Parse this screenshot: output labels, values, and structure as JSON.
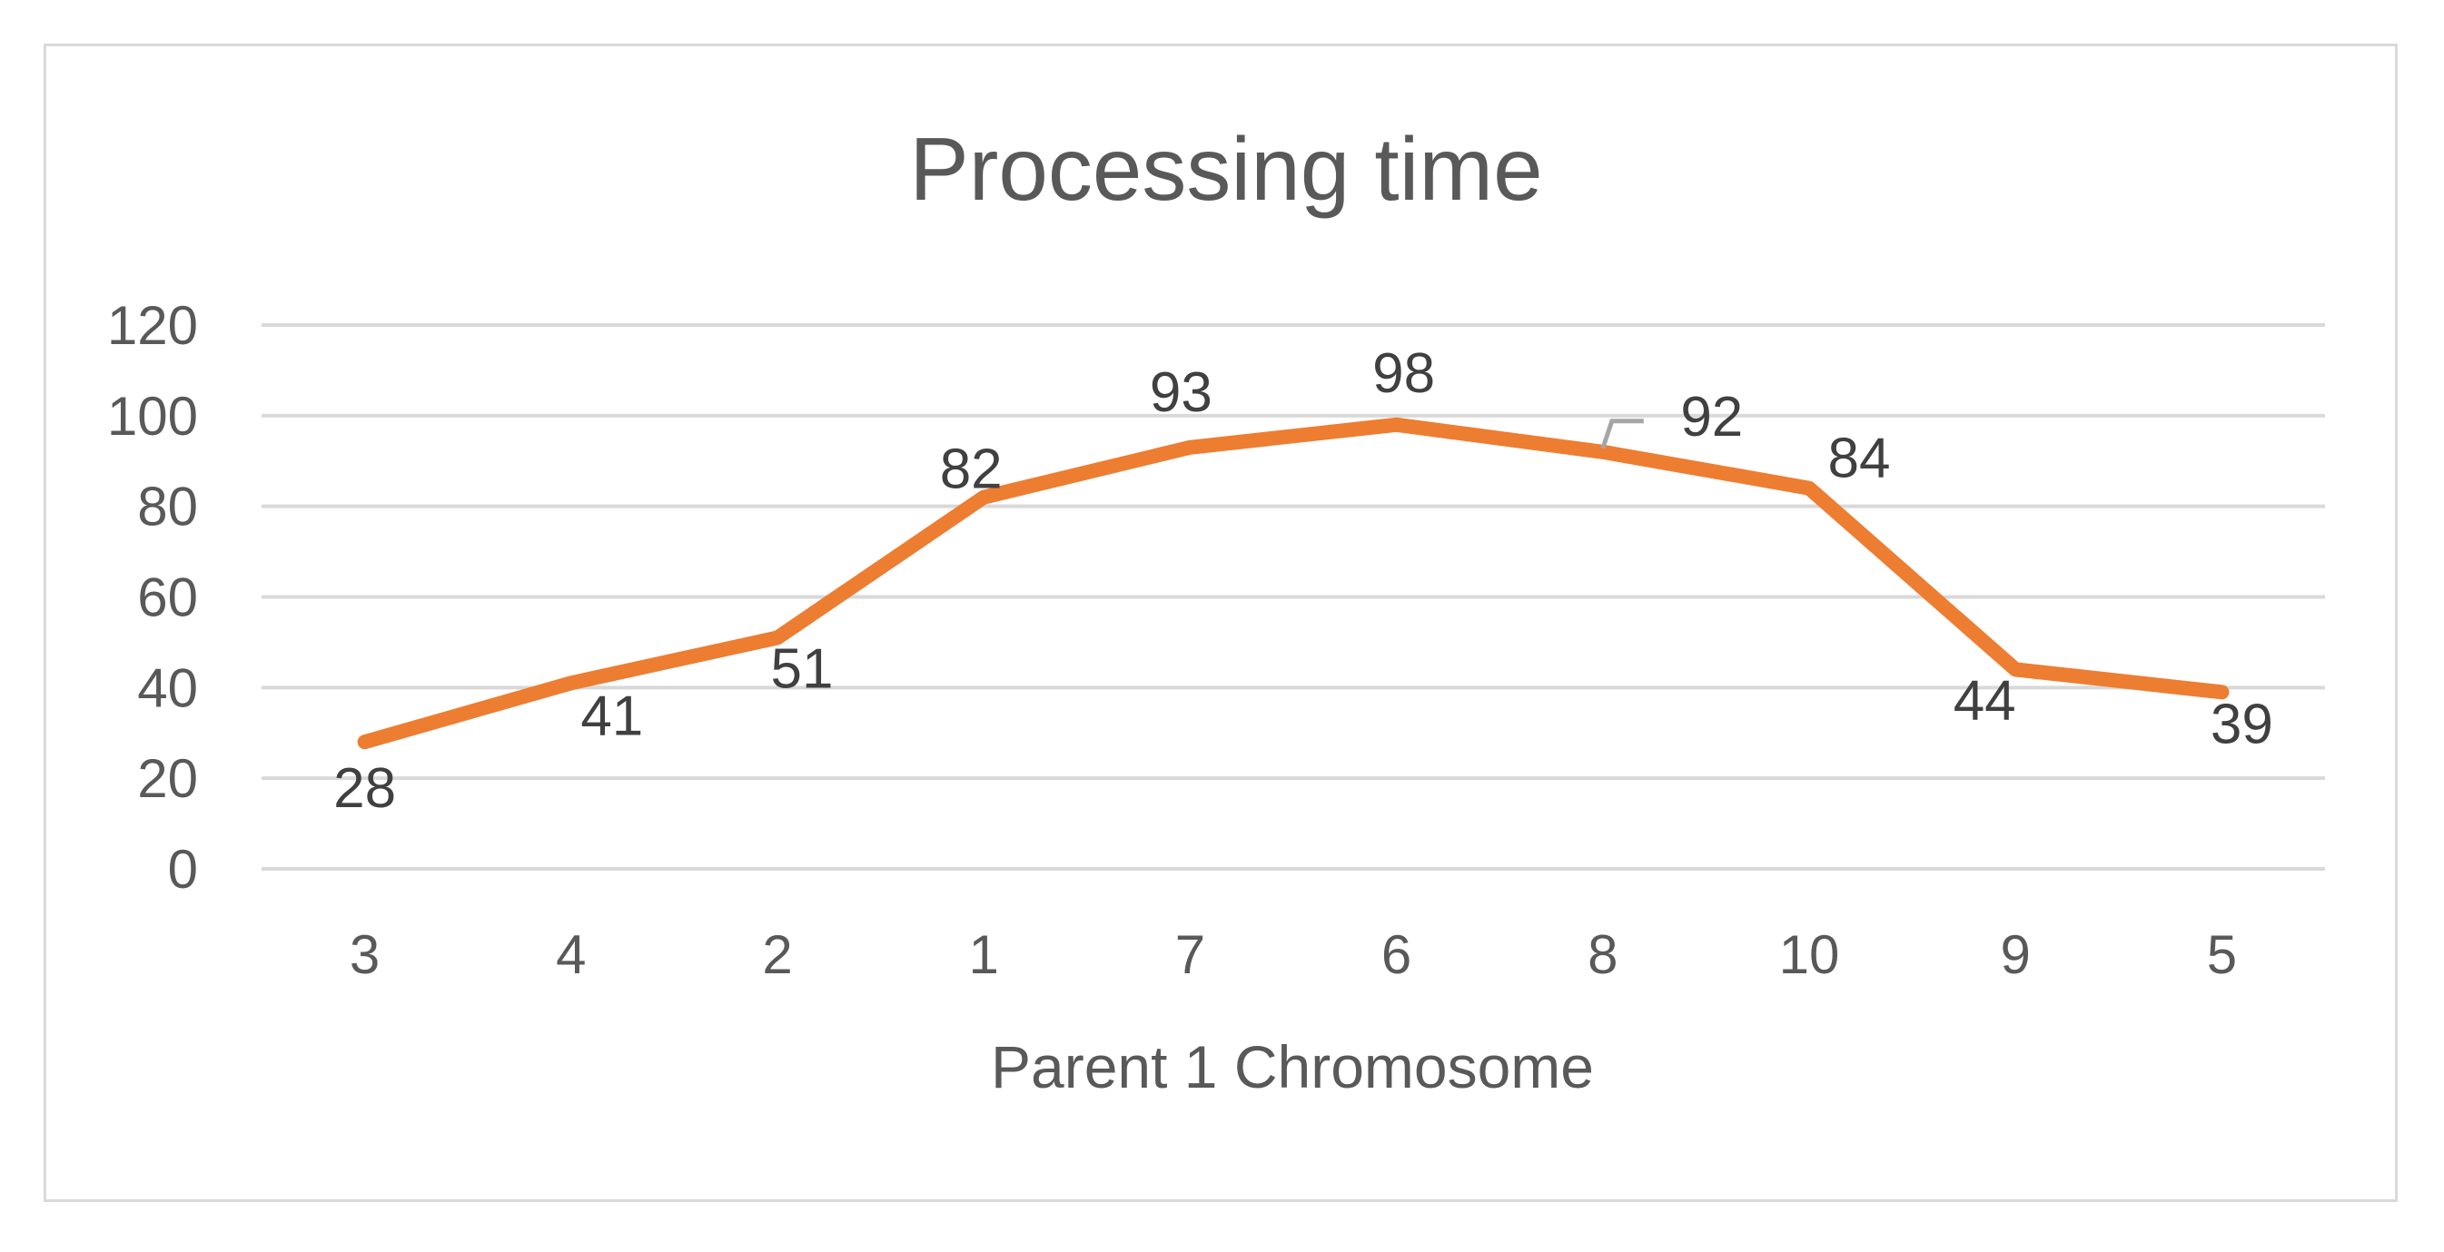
{
  "chart_data": {
    "type": "line",
    "title": "Processing time",
    "xlabel": "Parent 1 Chromosome",
    "ylabel": "",
    "categories": [
      "3",
      "4",
      "2",
      "1",
      "7",
      "6",
      "8",
      "10",
      "9",
      "5"
    ],
    "series": [
      {
        "values": [
          28,
          41,
          51,
          82,
          93,
          98,
          92,
          84,
          44,
          39
        ],
        "color": "#ed7d31",
        "data_labels": [
          "28",
          "41",
          "51",
          "82",
          "93",
          "98",
          "92",
          "84",
          "44",
          "39"
        ]
      }
    ],
    "ylim": [
      0,
      120
    ],
    "yticks": [
      0,
      20,
      40,
      60,
      80,
      100,
      120
    ],
    "ytick_labels": [
      "0",
      "20",
      "40",
      "60",
      "80",
      "100",
      "120"
    ],
    "grid": true,
    "legend": "none",
    "colors": {
      "line": "#ed7d31",
      "grid": "#d9d9d9",
      "text": "#595959",
      "data_label": "#404040",
      "leader": "#a6a6a6"
    }
  }
}
